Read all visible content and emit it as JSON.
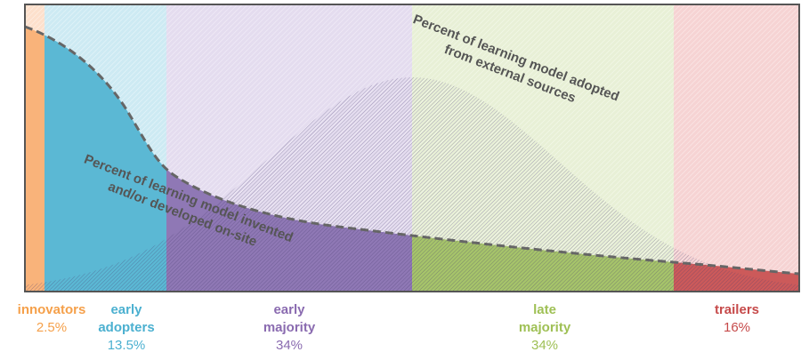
{
  "segments": [
    {
      "label": [
        "innovators"
      ],
      "share": "2.5%"
    },
    {
      "label": [
        "early",
        "adopters"
      ],
      "share": "13.5%"
    },
    {
      "label": [
        "early",
        "majority"
      ],
      "share": "34%"
    },
    {
      "label": [
        "late",
        "majority"
      ],
      "share": "34%"
    },
    {
      "label": [
        "trailers"
      ],
      "share": "16%"
    }
  ],
  "annotations": {
    "external": [
      "Percent of learning model adopted",
      "from external sources"
    ],
    "onsite": [
      "Percent of learning model invented",
      "and/or developed on-site"
    ]
  }
}
